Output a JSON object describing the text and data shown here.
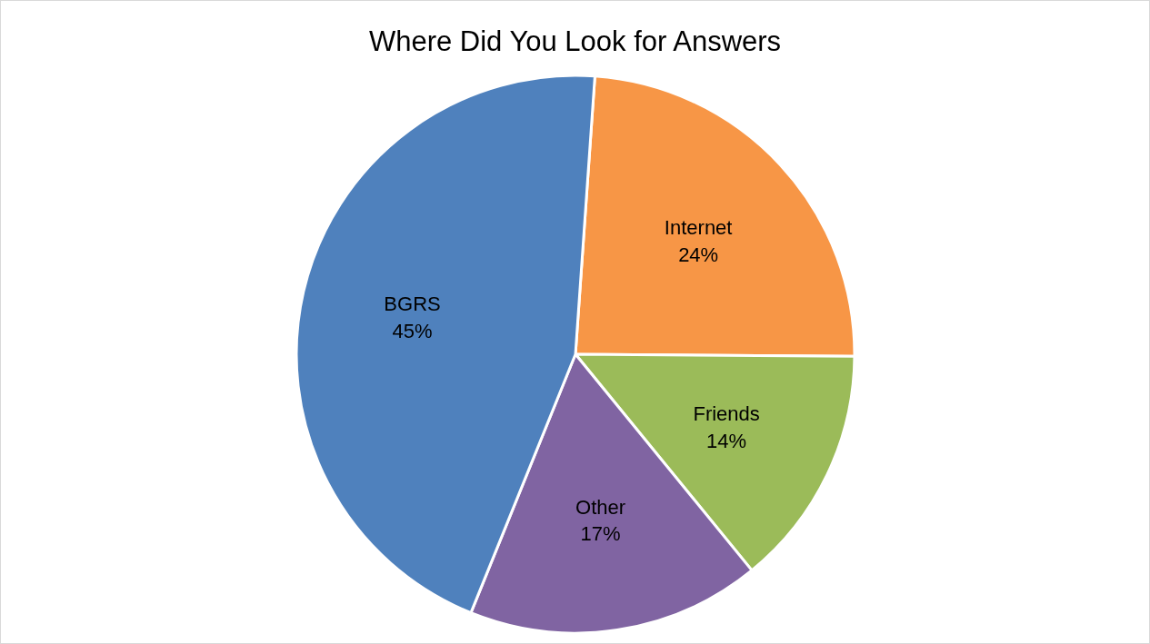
{
  "chart_data": {
    "type": "pie",
    "title": "Where Did You Look for Answers",
    "categories": [
      "Internet",
      "Friends",
      "Other",
      "BGRS"
    ],
    "values": [
      24,
      14,
      17,
      45
    ],
    "colors": [
      "#f79646",
      "#9bbb59",
      "#8064a2",
      "#4f81bd"
    ],
    "value_labels": [
      "24%",
      "14%",
      "17%",
      "45%"
    ]
  }
}
